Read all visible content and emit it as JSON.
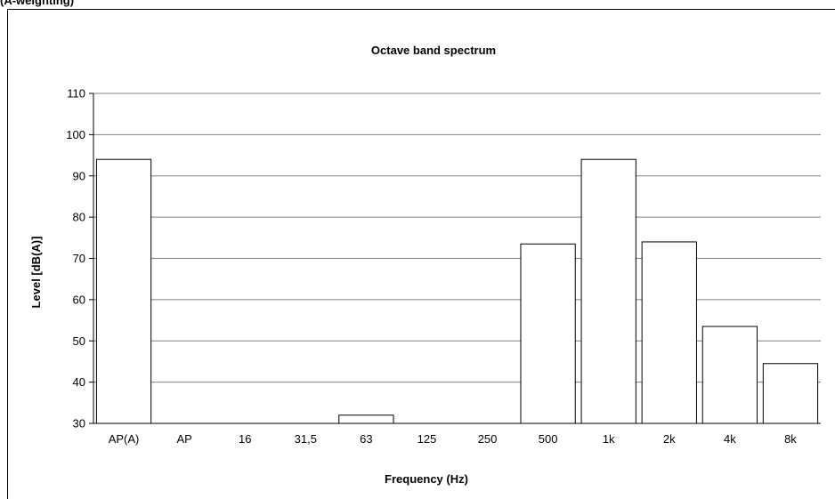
{
  "header_fragment": "(A-weighting)",
  "chart_data": {
    "type": "bar",
    "title": "Octave band spectrum",
    "xlabel": "Frequency (Hz)",
    "ylabel": "Level  [dB(A)]",
    "categories": [
      "AP(A)",
      "AP",
      "16",
      "31,5",
      "63",
      "125",
      "250",
      "500",
      "1k",
      "2k",
      "4k",
      "8k"
    ],
    "values": [
      94,
      30,
      30,
      30,
      32,
      30,
      30,
      73.5,
      94,
      74,
      53.5,
      44.5
    ],
    "ylim": [
      30,
      110
    ],
    "yticks": [
      30,
      40,
      50,
      60,
      70,
      80,
      90,
      100,
      110
    ],
    "grid": true,
    "legend": "none",
    "bar_fill": "#ffffff",
    "bar_stroke": "#000000",
    "grid_color": "#808080"
  }
}
